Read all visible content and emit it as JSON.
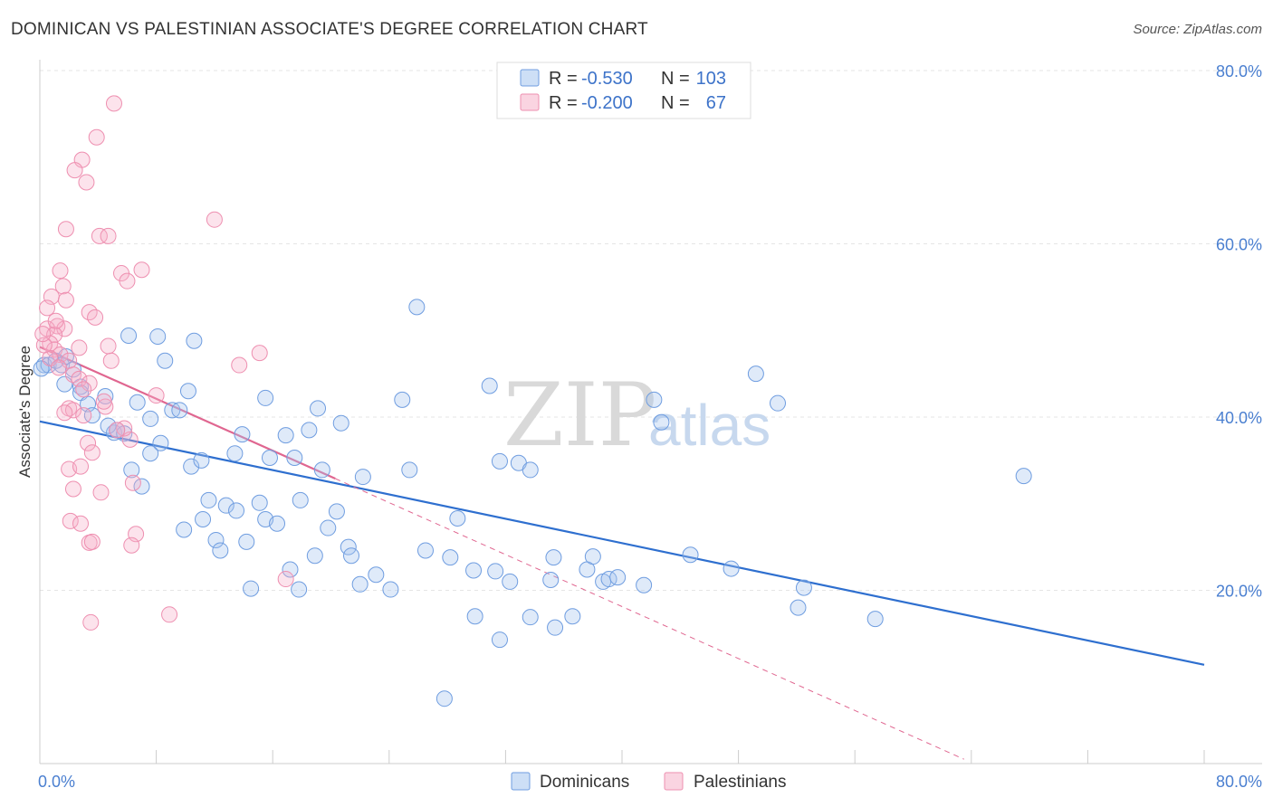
{
  "header": {
    "title": "DOMINICAN VS PALESTINIAN ASSOCIATE'S DEGREE CORRELATION CHART",
    "source": "Source: ZipAtlas.com"
  },
  "watermark": {
    "zip": "ZIP",
    "atlas": "atlas"
  },
  "legend_top": {
    "r_label": "R =",
    "n_label": "N =",
    "rows": [
      {
        "r": "-0.530",
        "n": "103",
        "color": "#7ba6e0"
      },
      {
        "r": "-0.200",
        "n": "67",
        "color": "#ee8fb0"
      }
    ]
  },
  "legend_bottom": {
    "items": [
      {
        "label": "Dominicans",
        "color": "#7ba6e0"
      },
      {
        "label": "Palestinians",
        "color": "#ee8fb0"
      }
    ]
  },
  "colors": {
    "blue_fill": "rgba(164,196,238,0.35)",
    "blue_stroke": "#6f9de0",
    "blue_line": "#2e6fcf",
    "pink_fill": "rgba(246,176,200,0.35)",
    "pink_stroke": "#ee8fb0",
    "pink_line": "#e06690",
    "grid": "#e5e5e5",
    "axis": "#cccccc"
  },
  "chart_data": {
    "type": "scatter",
    "title": "DOMINICAN VS PALESTINIAN ASSOCIATE'S DEGREE CORRELATION CHART",
    "xlabel": "",
    "ylabel": "Associate's Degree",
    "xlim": [
      0,
      80
    ],
    "ylim": [
      0,
      80
    ],
    "x_tick_labels": [
      "0.0%",
      "80.0%"
    ],
    "y_ticks": [
      20,
      40,
      60,
      80
    ],
    "y_tick_labels": [
      "20.0%",
      "40.0%",
      "60.0%",
      "80.0%"
    ],
    "grid": true,
    "legend_placement": "top-center",
    "series": [
      {
        "name": "Dominicans",
        "r": -0.53,
        "n": 103,
        "trend": {
          "x": [
            0,
            80
          ],
          "y": [
            39.5,
            11.4
          ],
          "style": "solid"
        },
        "points": [
          [
            0.3,
            46
          ],
          [
            0.6,
            46
          ],
          [
            1.1,
            46.5
          ],
          [
            1.5,
            46
          ],
          [
            1.8,
            47
          ],
          [
            2.3,
            45.5
          ],
          [
            1.7,
            43.8
          ],
          [
            2.8,
            43.5
          ],
          [
            2.8,
            42.8
          ],
          [
            3.3,
            41.5
          ],
          [
            3.6,
            40.2
          ],
          [
            4.5,
            42.4
          ],
          [
            5.1,
            38.2
          ],
          [
            4.7,
            39
          ],
          [
            5.3,
            38.5
          ],
          [
            5.8,
            38.1
          ],
          [
            6.1,
            49.4
          ],
          [
            6.7,
            41.7
          ],
          [
            7.6,
            39.8
          ],
          [
            8.1,
            49.3
          ],
          [
            8.3,
            37
          ],
          [
            8.6,
            46.5
          ],
          [
            9.1,
            40.8
          ],
          [
            9.6,
            40.8
          ],
          [
            10.2,
            43
          ],
          [
            10.6,
            48.8
          ],
          [
            10.4,
            34.3
          ],
          [
            11.1,
            35
          ],
          [
            7.6,
            35.8
          ],
          [
            6.3,
            33.9
          ],
          [
            7.0,
            32.0
          ],
          [
            9.9,
            27.0
          ],
          [
            11.2,
            28.2
          ],
          [
            11.6,
            30.4
          ],
          [
            12.1,
            25.8
          ],
          [
            12.4,
            24.6
          ],
          [
            12.8,
            29.8
          ],
          [
            13.5,
            29.2
          ],
          [
            13.4,
            35.8
          ],
          [
            13.9,
            38
          ],
          [
            14.2,
            25.6
          ],
          [
            14.5,
            20.2
          ],
          [
            15.1,
            30.1
          ],
          [
            15.5,
            28.2
          ],
          [
            15.5,
            42.2
          ],
          [
            15.8,
            35.3
          ],
          [
            16.3,
            27.7
          ],
          [
            16.9,
            37.9
          ],
          [
            17.2,
            22.4
          ],
          [
            17.5,
            35.3
          ],
          [
            17.8,
            20.1
          ],
          [
            17.9,
            30.4
          ],
          [
            18.5,
            38.5
          ],
          [
            18.9,
            24.0
          ],
          [
            19.1,
            41
          ],
          [
            19.4,
            33.9
          ],
          [
            19.8,
            27.2
          ],
          [
            20.4,
            29.1
          ],
          [
            20.7,
            39.3
          ],
          [
            21.2,
            25.0
          ],
          [
            21.4,
            24.0
          ],
          [
            22.0,
            20.7
          ],
          [
            22.2,
            33.1
          ],
          [
            23.1,
            21.8
          ],
          [
            24.1,
            20.1
          ],
          [
            24.9,
            42.0
          ],
          [
            25.4,
            33.9
          ],
          [
            25.9,
            52.7
          ],
          [
            26.5,
            24.6
          ],
          [
            27.8,
            7.5
          ],
          [
            28.2,
            23.8
          ],
          [
            28.7,
            28.3
          ],
          [
            29.8,
            22.3
          ],
          [
            29.9,
            17.0
          ],
          [
            30.9,
            43.6
          ],
          [
            31.3,
            22.2
          ],
          [
            31.6,
            34.9
          ],
          [
            31.6,
            14.3
          ],
          [
            32.3,
            21.0
          ],
          [
            32.9,
            34.7
          ],
          [
            33.7,
            16.9
          ],
          [
            33.7,
            33.9
          ],
          [
            35.1,
            21.2
          ],
          [
            35.3,
            23.8
          ],
          [
            35.4,
            15.7
          ],
          [
            36.6,
            17.0
          ],
          [
            37.6,
            22.4
          ],
          [
            38.0,
            23.9
          ],
          [
            38.7,
            21.0
          ],
          [
            39.1,
            21.3
          ],
          [
            39.7,
            21.5
          ],
          [
            41.5,
            20.6
          ],
          [
            42.2,
            42.0
          ],
          [
            42.7,
            39.4
          ],
          [
            44.7,
            24.1
          ],
          [
            47.5,
            22.5
          ],
          [
            49.2,
            45.0
          ],
          [
            50.7,
            41.6
          ],
          [
            52.1,
            18.0
          ],
          [
            52.5,
            20.3
          ],
          [
            57.4,
            16.7
          ],
          [
            67.6,
            33.2
          ],
          [
            0.1,
            45.6
          ]
        ]
      },
      {
        "name": "Palestinians",
        "r": -0.2,
        "n": 67,
        "trend": {
          "x": [
            0,
            20.3
          ],
          "y": [
            48.1,
            32.9
          ],
          "style": "solid"
        },
        "trend_extended": {
          "x": [
            20.3,
            63.5
          ],
          "y": [
            32.9,
            0.5
          ],
          "style": "dashed"
        },
        "points": [
          [
            5.1,
            76.2
          ],
          [
            3.9,
            72.3
          ],
          [
            2.9,
            69.7
          ],
          [
            2.4,
            68.5
          ],
          [
            3.2,
            67.1
          ],
          [
            12.0,
            62.8
          ],
          [
            1.8,
            61.7
          ],
          [
            4.1,
            60.9
          ],
          [
            4.7,
            60.9
          ],
          [
            1.4,
            56.9
          ],
          [
            5.6,
            56.6
          ],
          [
            7.0,
            57.0
          ],
          [
            6.0,
            55.7
          ],
          [
            1.6,
            55.1
          ],
          [
            0.8,
            53.9
          ],
          [
            1.8,
            53.5
          ],
          [
            0.5,
            52.6
          ],
          [
            3.4,
            52.1
          ],
          [
            3.8,
            51.5
          ],
          [
            1.2,
            50.5
          ],
          [
            1.7,
            50.2
          ],
          [
            0.5,
            50.2
          ],
          [
            1.0,
            49.5
          ],
          [
            0.7,
            48.5
          ],
          [
            2.7,
            48.0
          ],
          [
            1.0,
            47.8
          ],
          [
            4.7,
            48.2
          ],
          [
            1.4,
            47.2
          ],
          [
            0.7,
            46.8
          ],
          [
            2.0,
            46.5
          ],
          [
            4.9,
            46.5
          ],
          [
            15.1,
            47.4
          ],
          [
            13.7,
            46.0
          ],
          [
            2.3,
            44.9
          ],
          [
            2.7,
            44.4
          ],
          [
            3.4,
            43.9
          ],
          [
            8.0,
            42.5
          ],
          [
            2.0,
            41.0
          ],
          [
            2.3,
            40.8
          ],
          [
            4.5,
            41.2
          ],
          [
            3.0,
            40.2
          ],
          [
            1.7,
            40.5
          ],
          [
            6.2,
            37.4
          ],
          [
            3.3,
            37.0
          ],
          [
            5.8,
            38.7
          ],
          [
            3.6,
            35.9
          ],
          [
            2.0,
            34.0
          ],
          [
            2.8,
            34.3
          ],
          [
            6.4,
            32.4
          ],
          [
            2.3,
            31.7
          ],
          [
            4.2,
            31.3
          ],
          [
            2.1,
            28.0
          ],
          [
            2.8,
            27.7
          ],
          [
            6.6,
            26.5
          ],
          [
            3.4,
            25.5
          ],
          [
            3.6,
            25.6
          ],
          [
            6.3,
            25.2
          ],
          [
            16.9,
            21.3
          ],
          [
            3.5,
            16.3
          ],
          [
            8.9,
            17.2
          ],
          [
            0.3,
            48.3
          ],
          [
            1.1,
            51.1
          ],
          [
            0.2,
            49.6
          ],
          [
            4.4,
            41.8
          ],
          [
            3.0,
            43.2
          ],
          [
            5.3,
            38.5
          ],
          [
            1.3,
            45.7
          ]
        ]
      }
    ]
  }
}
